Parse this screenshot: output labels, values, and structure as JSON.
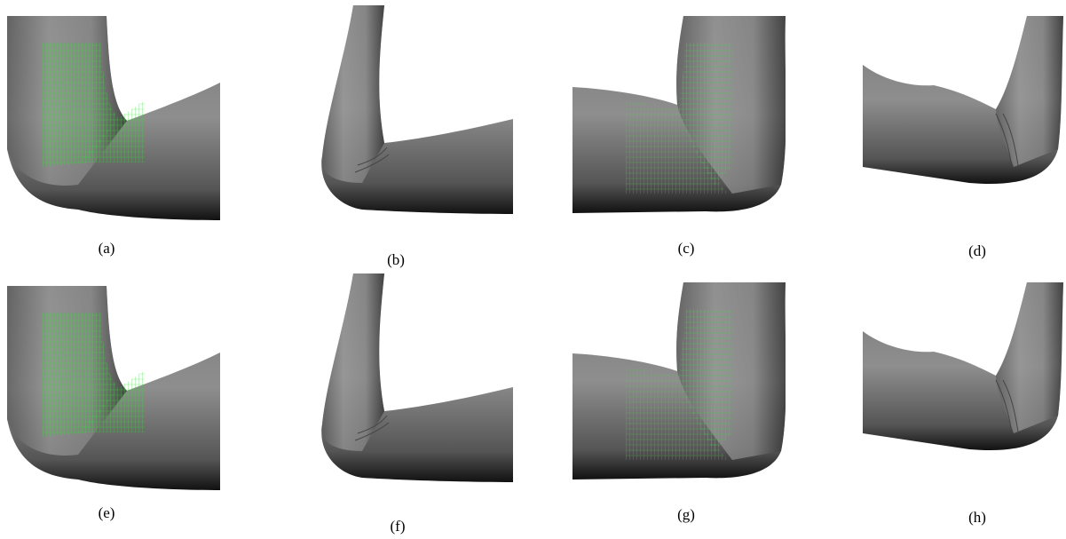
{
  "figure": {
    "panels": [
      {
        "caption": "(a)"
      },
      {
        "caption": "(b)"
      },
      {
        "caption": "(c)"
      },
      {
        "caption": "(d)"
      },
      {
        "caption": "(e)"
      },
      {
        "caption": "(f)"
      },
      {
        "caption": "(g)"
      },
      {
        "caption": "(h)"
      }
    ]
  }
}
